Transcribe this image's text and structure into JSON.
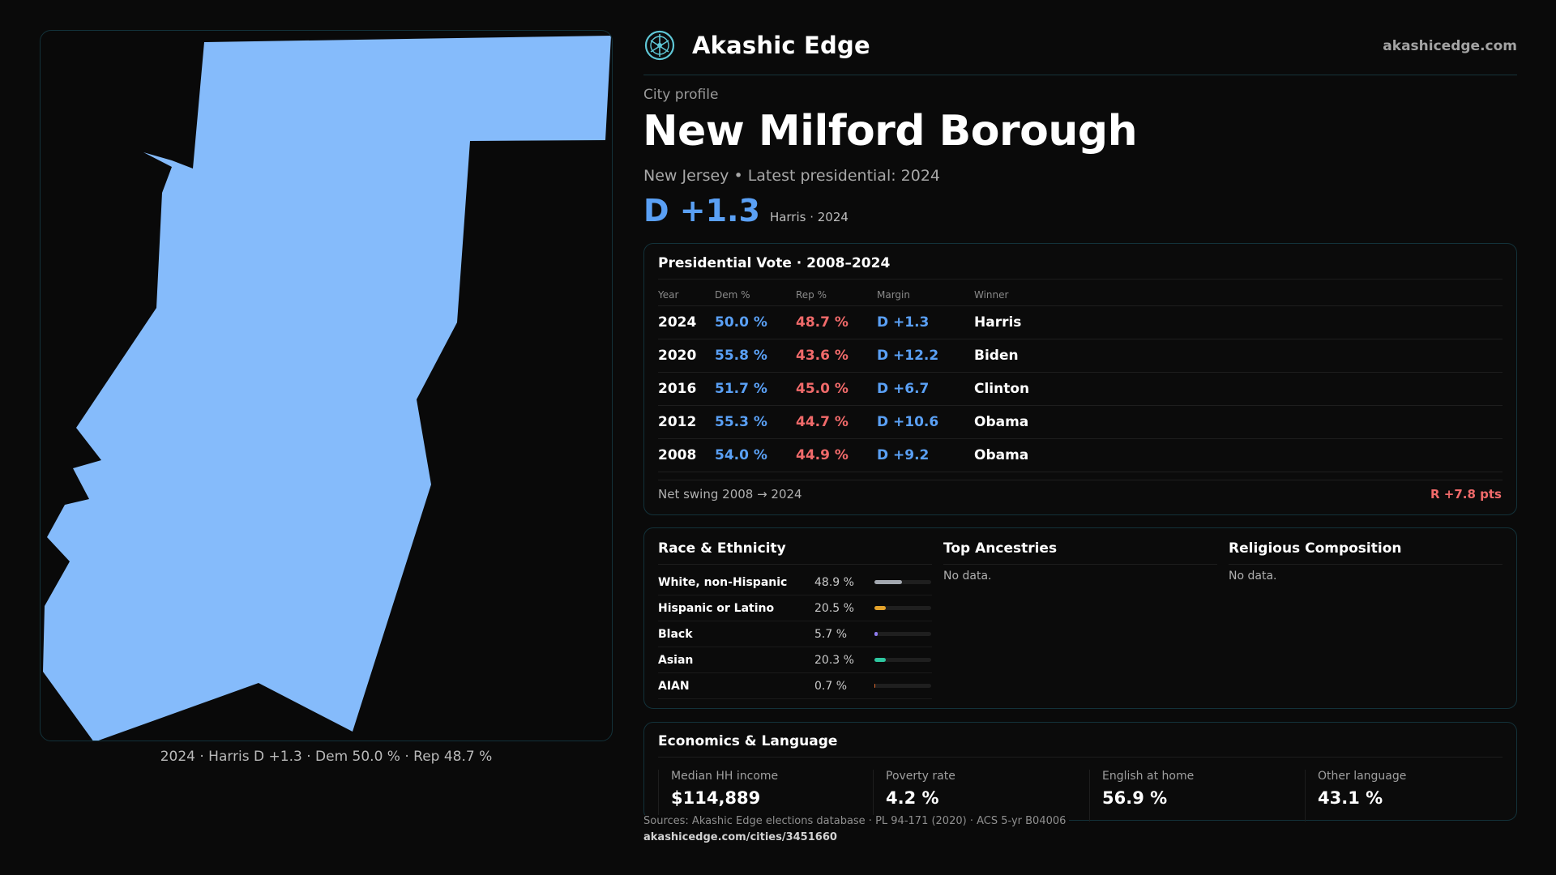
{
  "brand": {
    "name": "Akashic Edge",
    "site": "akashicedge.com"
  },
  "profile": {
    "eyebrow": "City profile",
    "city": "New Milford Borough",
    "subline": "New Jersey • Latest presidential: 2024",
    "headline_margin": "D +1.3",
    "headline_sub": "Harris · 2024"
  },
  "map": {
    "caption": "2024 · Harris D +1.3 · Dem 50.0 % · Rep 48.7 %",
    "fill_color": "#85bbfb"
  },
  "vote": {
    "title": "Presidential Vote · 2008–2024",
    "headers": {
      "year": "Year",
      "dem": "Dem %",
      "rep": "Rep %",
      "margin": "Margin",
      "winner": "Winner"
    },
    "rows": [
      {
        "year": "2024",
        "dem": "50.0 %",
        "rep": "48.7 %",
        "margin": "D +1.3",
        "winner": "Harris"
      },
      {
        "year": "2020",
        "dem": "55.8 %",
        "rep": "43.6 %",
        "margin": "D +12.2",
        "winner": "Biden"
      },
      {
        "year": "2016",
        "dem": "51.7 %",
        "rep": "45.0 %",
        "margin": "D +6.7",
        "winner": "Clinton"
      },
      {
        "year": "2012",
        "dem": "55.3 %",
        "rep": "44.7 %",
        "margin": "D +10.6",
        "winner": "Obama"
      },
      {
        "year": "2008",
        "dem": "54.0 %",
        "rep": "44.9 %",
        "margin": "D +9.2",
        "winner": "Obama"
      }
    ],
    "net_swing_label": "Net swing 2008 → 2024",
    "net_swing_value": "R +7.8 pts"
  },
  "demographics": {
    "race_title": "Race & Ethnicity",
    "race": [
      {
        "label": "White, non-Hispanic",
        "pct": "48.9 %",
        "value": 48.9,
        "color": "#a3a8b0"
      },
      {
        "label": "Hispanic or Latino",
        "pct": "20.5 %",
        "value": 20.5,
        "color": "#e3a22b"
      },
      {
        "label": "Black",
        "pct": "5.7 %",
        "value": 5.7,
        "color": "#8f7cf0"
      },
      {
        "label": "Asian",
        "pct": "20.3 %",
        "value": 20.3,
        "color": "#2ec7a0"
      },
      {
        "label": "AIAN",
        "pct": "0.7 %",
        "value": 0.7,
        "color": "#e06a2e"
      }
    ],
    "ancestries_title": "Top Ancestries",
    "ancestries_empty": "No data.",
    "religion_title": "Religious Composition",
    "religion_empty": "No data."
  },
  "economics": {
    "title": "Economics & Language",
    "items": [
      {
        "label": "Median HH income",
        "value": "$114,889"
      },
      {
        "label": "Poverty rate",
        "value": "4.2 %"
      },
      {
        "label": "English at home",
        "value": "56.9 %"
      },
      {
        "label": "Other language",
        "value": "43.1 %"
      }
    ]
  },
  "footer": {
    "sources": "Sources: Akashic Edge elections database · PL 94-171 (2020) · ACS 5-yr B04006",
    "url": "akashicedge.com/cities/3451660"
  }
}
